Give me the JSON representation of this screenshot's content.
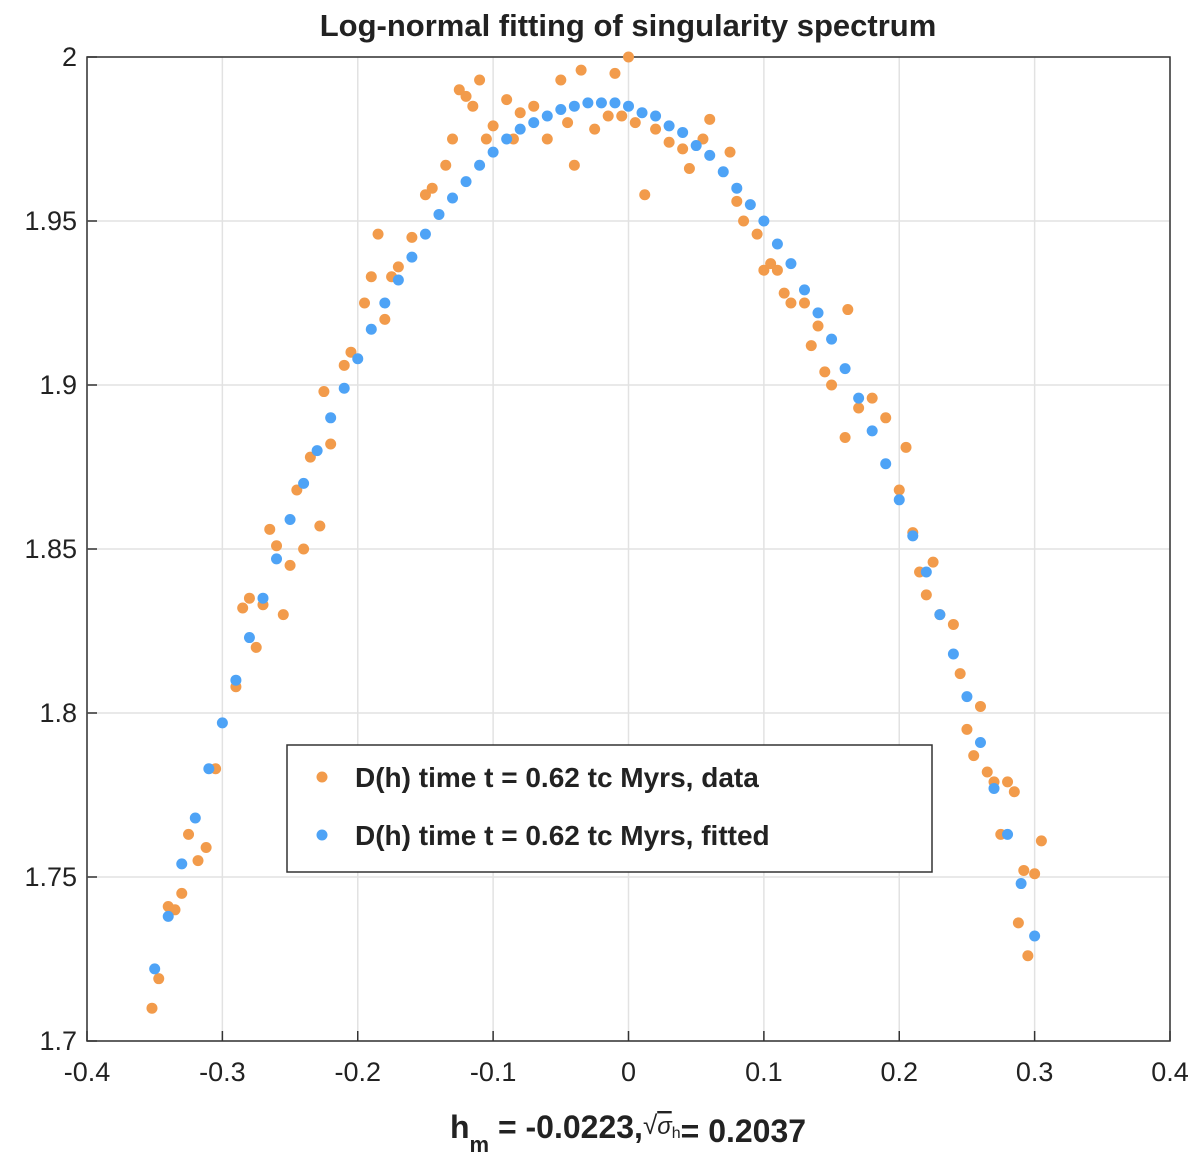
{
  "chart_data": {
    "type": "scatter",
    "title": "Log-normal fitting of singularity spectrum",
    "xlabel": [
      "h",
      "m",
      " = -0.0223,",
      "√",
      "σ",
      "h",
      "= 0.2037"
    ],
    "xlim": [
      -0.4,
      0.4
    ],
    "ylim": [
      1.7,
      2
    ],
    "xticks": [
      -0.4,
      -0.3,
      -0.2,
      -0.1,
      0,
      0.1,
      0.2,
      0.3,
      0.4
    ],
    "yticks": [
      1.7,
      1.75,
      1.8,
      1.85,
      1.9,
      1.95,
      2
    ],
    "grid": true,
    "legend": "center",
    "series": [
      {
        "name": "D(h) time t = 0.62 tc Myrs, data",
        "color": "#f29b4b",
        "x": [
          -0.352,
          -0.347,
          -0.34,
          -0.335,
          -0.33,
          -0.325,
          -0.318,
          -0.312,
          -0.305,
          -0.29,
          -0.285,
          -0.28,
          -0.275,
          -0.27,
          -0.265,
          -0.26,
          -0.255,
          -0.25,
          -0.245,
          -0.24,
          -0.235,
          -0.228,
          -0.225,
          -0.22,
          -0.21,
          -0.205,
          -0.195,
          -0.19,
          -0.185,
          -0.18,
          -0.175,
          -0.17,
          -0.16,
          -0.15,
          -0.145,
          -0.135,
          -0.13,
          -0.125,
          -0.12,
          -0.115,
          -0.11,
          -0.105,
          -0.1,
          -0.09,
          -0.085,
          -0.08,
          -0.07,
          -0.06,
          -0.05,
          -0.045,
          -0.04,
          -0.035,
          -0.025,
          -0.015,
          -0.01,
          -0.005,
          0,
          0.005,
          0.012,
          0.02,
          0.03,
          0.04,
          0.045,
          0.055,
          0.06,
          0.075,
          0.08,
          0.085,
          0.095,
          0.1,
          0.105,
          0.11,
          0.115,
          0.12,
          0.13,
          0.135,
          0.14,
          0.145,
          0.15,
          0.16,
          0.162,
          0.17,
          0.18,
          0.19,
          0.2,
          0.205,
          0.21,
          0.215,
          0.22,
          0.225,
          0.23,
          0.24,
          0.245,
          0.25,
          0.255,
          0.26,
          0.265,
          0.27,
          0.275,
          0.28,
          0.285,
          0.288,
          0.292,
          0.295,
          0.3,
          0.305
        ],
        "values": [
          1.71,
          1.719,
          1.741,
          1.74,
          1.745,
          1.763,
          1.755,
          1.759,
          1.783,
          1.808,
          1.832,
          1.835,
          1.82,
          1.833,
          1.856,
          1.851,
          1.83,
          1.845,
          1.868,
          1.85,
          1.878,
          1.857,
          1.898,
          1.882,
          1.906,
          1.91,
          1.925,
          1.933,
          1.946,
          1.92,
          1.933,
          1.936,
          1.945,
          1.958,
          1.96,
          1.967,
          1.975,
          1.99,
          1.988,
          1.985,
          1.993,
          1.975,
          1.979,
          1.987,
          1.975,
          1.983,
          1.985,
          1.975,
          1.993,
          1.98,
          1.967,
          1.996,
          1.978,
          1.982,
          1.995,
          1.982,
          2.0,
          1.98,
          1.958,
          1.978,
          1.974,
          1.972,
          1.966,
          1.975,
          1.981,
          1.971,
          1.956,
          1.95,
          1.946,
          1.935,
          1.937,
          1.935,
          1.928,
          1.925,
          1.925,
          1.912,
          1.918,
          1.904,
          1.9,
          1.884,
          1.923,
          1.893,
          1.896,
          1.89,
          1.868,
          1.881,
          1.855,
          1.843,
          1.836,
          1.846,
          1.83,
          1.827,
          1.812,
          1.795,
          1.787,
          1.802,
          1.782,
          1.779,
          1.763,
          1.779,
          1.776,
          1.736,
          1.752,
          1.726,
          1.751,
          1.761
        ]
      },
      {
        "name": "D(h) time t = 0.62 tc Myrs, fitted",
        "color": "#4ea3f6",
        "x": [
          -0.35,
          -0.34,
          -0.33,
          -0.32,
          -0.31,
          -0.3,
          -0.29,
          -0.28,
          -0.27,
          -0.26,
          -0.25,
          -0.24,
          -0.23,
          -0.22,
          -0.21,
          -0.2,
          -0.19,
          -0.18,
          -0.17,
          -0.16,
          -0.15,
          -0.14,
          -0.13,
          -0.12,
          -0.11,
          -0.1,
          -0.09,
          -0.08,
          -0.07,
          -0.06,
          -0.05,
          -0.04,
          -0.03,
          -0.02,
          -0.01,
          0,
          0.01,
          0.02,
          0.03,
          0.04,
          0.05,
          0.06,
          0.07,
          0.08,
          0.09,
          0.1,
          0.11,
          0.12,
          0.13,
          0.14,
          0.15,
          0.16,
          0.17,
          0.18,
          0.19,
          0.2,
          0.21,
          0.22,
          0.23,
          0.24,
          0.25,
          0.26,
          0.27,
          0.28,
          0.29,
          0.3
        ],
        "values": [
          1.722,
          1.738,
          1.754,
          1.768,
          1.783,
          1.797,
          1.81,
          1.823,
          1.835,
          1.847,
          1.859,
          1.87,
          1.88,
          1.89,
          1.899,
          1.908,
          1.917,
          1.925,
          1.932,
          1.939,
          1.946,
          1.952,
          1.957,
          1.962,
          1.967,
          1.971,
          1.975,
          1.978,
          1.98,
          1.982,
          1.984,
          1.985,
          1.986,
          1.986,
          1.986,
          1.985,
          1.983,
          1.982,
          1.979,
          1.977,
          1.973,
          1.97,
          1.965,
          1.96,
          1.955,
          1.95,
          1.943,
          1.937,
          1.929,
          1.922,
          1.914,
          1.905,
          1.896,
          1.886,
          1.876,
          1.865,
          1.854,
          1.843,
          1.83,
          1.818,
          1.805,
          1.791,
          1.777,
          1.763,
          1.748,
          1.732
        ]
      }
    ]
  }
}
